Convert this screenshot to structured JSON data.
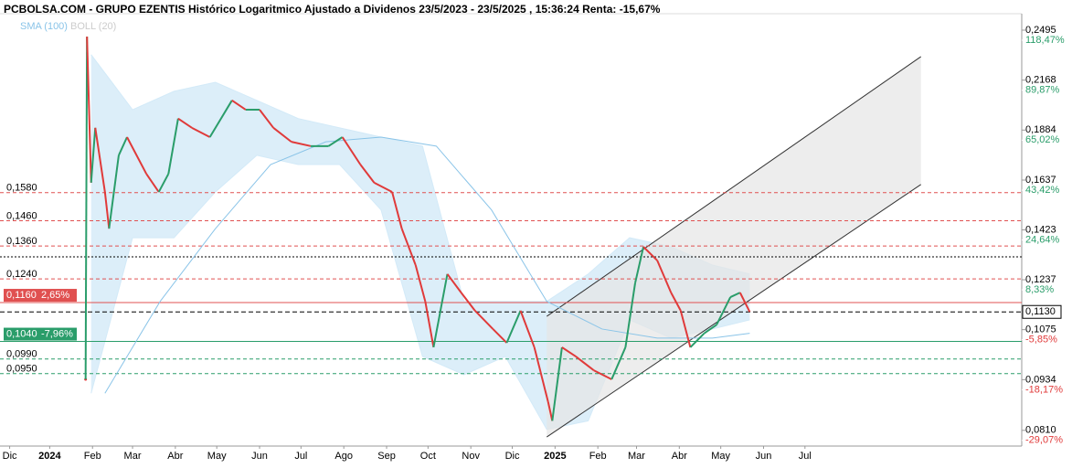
{
  "chart_data": {
    "type": "line",
    "title": "PCBOLSA.COM - GRUPO EZENTIS Histórico Logaritmico Ajustado a Dividenos 23/5/2023 - 23/5/2025 , 15:36:24 Renta: -15,67%",
    "log_scale": true,
    "x": [
      26,
      27,
      30,
      33,
      40,
      43,
      50,
      56,
      70,
      79,
      86,
      93,
      103,
      116,
      132,
      142,
      152,
      162,
      175,
      189,
      202,
      212,
      225,
      235,
      248,
      255,
      265,
      272,
      278,
      288,
      298,
      308,
      321,
      331,
      341,
      351,
      361,
      364,
      371,
      381,
      394,
      407,
      417,
      424,
      430,
      440,
      450,
      457,
      464,
      474,
      483,
      493,
      500,
      507
    ],
    "values": [
      0.0935,
      0.245,
      0.1625,
      0.1896,
      0.1583,
      0.1428,
      0.1755,
      0.1847,
      0.1666,
      0.1583,
      0.1666,
      0.1946,
      0.1896,
      0.1847,
      0.2048,
      0.1995,
      0.1995,
      0.1896,
      0.1823,
      0.1801,
      0.1801,
      0.1847,
      0.171,
      0.1625,
      0.1583,
      0.1428,
      0.1289,
      0.1164,
      0.1023,
      0.1257,
      0.1193,
      0.1134,
      0.1077,
      0.1036,
      0.1134,
      0.1023,
      0.0877,
      0.0832,
      0.1023,
      0.0997,
      0.0959,
      0.0935,
      0.1023,
      0.1225,
      0.1357,
      0.1306,
      0.1193,
      0.1134,
      0.1023,
      0.1064,
      0.109,
      0.1178,
      0.1193,
      0.113
    ],
    "up_color": "#2a9d6a",
    "down_color": "#e03a3a",
    "indicators": [
      {
        "name": "SMA (100)",
        "color": "#8ac4e8",
        "x": [
          40,
          80,
          120,
          160,
          200,
          240,
          280,
          320,
          360,
          400,
          440,
          480,
          507
        ],
        "values": [
          0.0899,
          0.1164,
          0.1428,
          0.171,
          0.1823,
          0.1847,
          0.1801,
          0.1505,
          0.1164,
          0.1077,
          0.105,
          0.105,
          0.1064
        ]
      },
      {
        "name": "BOLL (20)",
        "color": "#cccccc",
        "fill": "#d3eaf8",
        "x": [
          30,
          60,
          90,
          120,
          150,
          180,
          210,
          240,
          270,
          300,
          330,
          360,
          390,
          420,
          450,
          480,
          507
        ],
        "upper": [
          0.2329,
          0.1995,
          0.2101,
          0.2155,
          0.2048,
          0.1946,
          0.1896,
          0.1847,
          0.1801,
          0.1164,
          0.1164,
          0.1164,
          0.1257,
          0.1392,
          0.1357,
          0.1289,
          0.1257
        ],
        "lower": [
          0.0899,
          0.1392,
          0.1392,
          0.1583,
          0.1755,
          0.171,
          0.171,
          0.1505,
          0.0997,
          0.0947,
          0.0997,
          0.0812,
          0.0832,
          0.1105,
          0.105,
          0.1077,
          0.1105
        ]
      }
    ],
    "channel": {
      "x": [
        360,
        631
      ],
      "upper": [
        0.1116,
        0.2316
      ],
      "lower": [
        0.0795,
        0.1617
      ]
    },
    "levels": [
      {
        "value": 0.158,
        "label": "0,1580",
        "color": "#e05050",
        "style": "dashed"
      },
      {
        "value": 0.146,
        "label": "0,1460",
        "color": "#e05050",
        "style": "dashed"
      },
      {
        "value": 0.136,
        "label": "0,1360",
        "color": "#e05050",
        "style": "dashed"
      },
      {
        "value": 0.1319,
        "color": "#000000",
        "style": "dotted"
      },
      {
        "value": 0.124,
        "label": "0,1240",
        "color": "#e05050",
        "style": "dashed"
      },
      {
        "value": 0.116,
        "label": "0,1160",
        "pct": "2,65%",
        "color": "#e05050",
        "style": "solid"
      },
      {
        "value": 0.104,
        "label": "0,1040",
        "pct": "-7,96%",
        "color": "#2a9d6a",
        "style": "solid"
      },
      {
        "value": 0.099,
        "label": "0,0990",
        "color": "#2a9d6a",
        "style": "dashed"
      },
      {
        "value": 0.095,
        "label": "0,0950",
        "color": "#2a9d6a",
        "style": "dashed"
      }
    ],
    "current": {
      "value": 0.113,
      "label": "0,1130"
    },
    "xlim": [
      -36,
      704
    ],
    "xticks": [
      {
        "value": -29,
        "label": "Dic"
      },
      {
        "value": 0,
        "label": "2024"
      },
      {
        "value": 31,
        "label": "Feb"
      },
      {
        "value": 60,
        "label": "Mar"
      },
      {
        "value": 91,
        "label": "Abr"
      },
      {
        "value": 121,
        "label": "May"
      },
      {
        "value": 152,
        "label": "Jun"
      },
      {
        "value": 182,
        "label": "Jul"
      },
      {
        "value": 213,
        "label": "Ago"
      },
      {
        "value": 244,
        "label": "Sep"
      },
      {
        "value": 274,
        "label": "Oct"
      },
      {
        "value": 305,
        "label": "Nov"
      },
      {
        "value": 335,
        "label": "Dic"
      },
      {
        "value": 366,
        "label": "2025"
      },
      {
        "value": 397,
        "label": "Feb"
      },
      {
        "value": 425,
        "label": "Mar"
      },
      {
        "value": 456,
        "label": "Abr"
      },
      {
        "value": 486,
        "label": "May"
      },
      {
        "value": 517,
        "label": "Jun"
      },
      {
        "value": 547,
        "label": "Jul"
      }
    ],
    "ylim": [
      0.0775,
      0.2613
    ],
    "yticks": [
      {
        "value": 0.2495,
        "label": "0,2495"
      },
      {
        "value": 0.2168,
        "label": "0,2168"
      },
      {
        "value": 0.1884,
        "label": "0,1884"
      },
      {
        "value": 0.1637,
        "label": "0,1637"
      },
      {
        "value": 0.1423,
        "label": "0,1423"
      },
      {
        "value": 0.1237,
        "label": "0,1237"
      },
      {
        "value": 0.1075,
        "label": "0,1075"
      },
      {
        "value": 0.0934,
        "label": "0,0934"
      },
      {
        "value": 0.081,
        "label": "0,0810"
      }
    ],
    "y2lim": [
      0.0775,
      0.2613
    ],
    "y2ticks": [
      {
        "value": 0.2495,
        "label": "118,47%"
      },
      {
        "value": 0.2168,
        "label": "89,87%"
      },
      {
        "value": 0.1884,
        "label": "65,02%"
      },
      {
        "value": 0.1637,
        "label": "43,42%"
      },
      {
        "value": 0.1423,
        "label": "24,64%"
      },
      {
        "value": 0.1237,
        "label": "8,33%"
      },
      {
        "value": 0.1075,
        "label": "-5,85%"
      },
      {
        "value": 0.0934,
        "label": "-18,17%"
      },
      {
        "value": 0.081,
        "label": "-29,07%"
      }
    ]
  }
}
